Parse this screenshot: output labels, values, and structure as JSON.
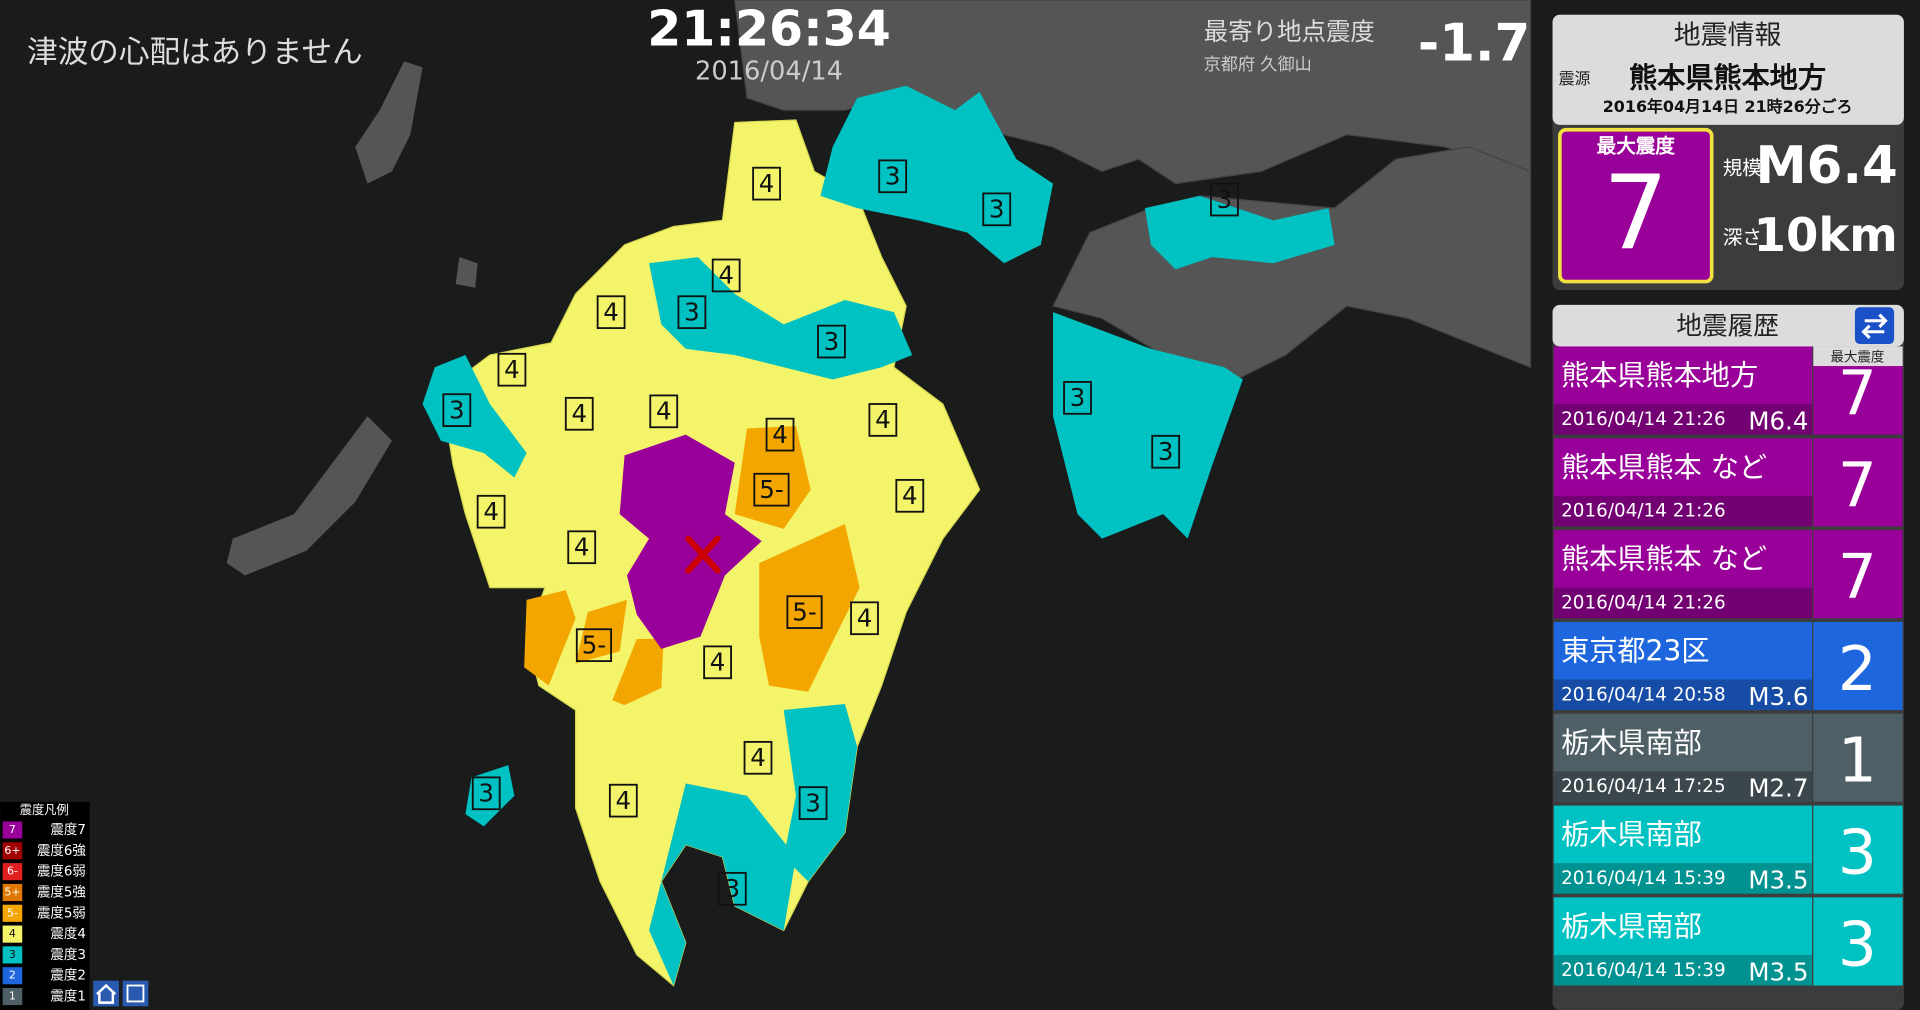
{
  "header": {
    "tsunami": "津波の心配はありません",
    "time": "21:26:34",
    "date": "2016/04/14",
    "nearest_label": "最寄り地点震度",
    "nearest_place": "京都府 久御山",
    "nearest_value": "-1.7"
  },
  "quake_info": {
    "title": "地震情報",
    "epicenter_label": "震源",
    "epicenter": "熊本県熊本地方",
    "time": "2016年04月14日 21時26分ごろ",
    "max_label": "最大震度",
    "max_intensity": "7",
    "magnitude_label": "規模",
    "magnitude": "M6.4",
    "depth_label": "深さ",
    "depth": "10km"
  },
  "history": {
    "title": "地震履歴",
    "max_label": "最大震度",
    "items": [
      {
        "place": "熊本県熊本地方",
        "time": "2016/04/14 21:26",
        "magnitude": "M6.4",
        "intensity": "7"
      },
      {
        "place": "熊本県熊本 など",
        "time": "2016/04/14 21:26",
        "intensity": "7"
      },
      {
        "place": "熊本県熊本 など",
        "time": "2016/04/14 21:26",
        "intensity": "7"
      },
      {
        "place": "東京都23区",
        "time": "2016/04/14 20:58",
        "magnitude": "M3.6",
        "intensity": "2"
      },
      {
        "place": "栃木県南部",
        "time": "2016/04/14 17:25",
        "magnitude": "M2.7",
        "intensity": "1"
      },
      {
        "place": "栃木県南部",
        "time": "2016/04/14 15:39",
        "magnitude": "M3.5",
        "intensity": "3"
      },
      {
        "place": "栃木県南部",
        "time": "2016/04/14 15:39",
        "magnitude": "M3.5",
        "intensity": "3"
      }
    ]
  },
  "legend": {
    "title": "震度凡例",
    "items": [
      {
        "code": "7",
        "label": "震度7"
      },
      {
        "code": "6+",
        "label": "震度6強"
      },
      {
        "code": "6-",
        "label": "震度6弱"
      },
      {
        "code": "5+",
        "label": "震度5強"
      },
      {
        "code": "5-",
        "label": "震度5弱"
      },
      {
        "code": "4",
        "label": "震度4"
      },
      {
        "code": "3",
        "label": "震度3"
      },
      {
        "code": "2",
        "label": "震度2"
      },
      {
        "code": "1",
        "label": "震度1"
      }
    ]
  },
  "map_labels": [
    "4",
    "3",
    "3",
    "3",
    "4",
    "4",
    "3",
    "3",
    "4",
    "3",
    "4",
    "4",
    "4",
    "4",
    "5-",
    "4",
    "3",
    "3",
    "4",
    "4",
    "5-",
    "4",
    "5-",
    "4",
    "4",
    "3",
    "4",
    "3",
    "3"
  ]
}
